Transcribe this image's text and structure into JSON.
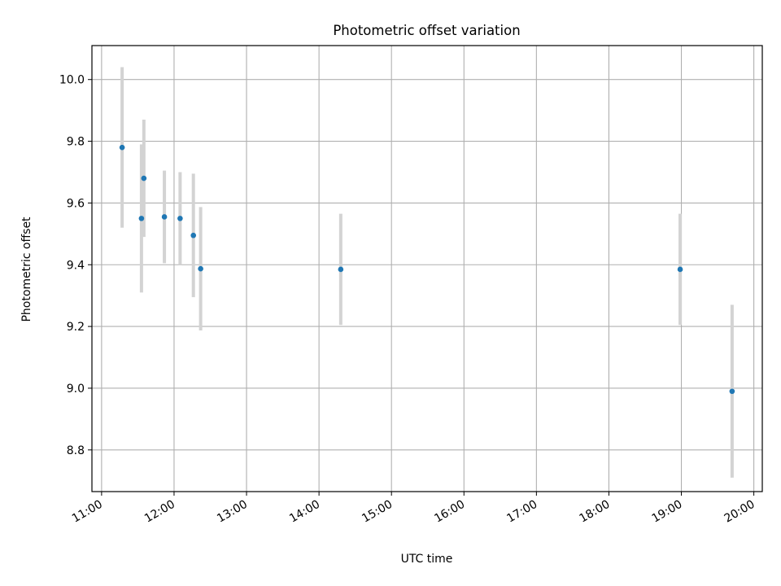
{
  "chart_data": {
    "type": "scatter",
    "title": "Photometric offset variation",
    "xlabel": "UTC time",
    "ylabel": "Photometric offset",
    "x_axis_type": "time",
    "xlim": [
      "10:52",
      "20:07"
    ],
    "ylim": [
      8.665,
      10.11
    ],
    "grid": true,
    "xticks": [
      "11:00",
      "12:00",
      "13:00",
      "14:00",
      "15:00",
      "16:00",
      "17:00",
      "18:00",
      "19:00",
      "20:00"
    ],
    "yticks": [
      "8.8",
      "9.0",
      "9.2",
      "9.4",
      "9.6",
      "9.8",
      "10.0"
    ],
    "series": [
      {
        "marker_color": "#1f77b4",
        "errorbar_color": "#d3d3d3",
        "points": [
          {
            "x": "11:17",
            "y": 9.78,
            "err": 0.26
          },
          {
            "x": "11:33",
            "y": 9.55,
            "err": 0.24
          },
          {
            "x": "11:35",
            "y": 9.68,
            "err": 0.19
          },
          {
            "x": "11:52",
            "y": 9.555,
            "err": 0.15
          },
          {
            "x": "12:05",
            "y": 9.55,
            "err": 0.15
          },
          {
            "x": "12:16",
            "y": 9.495,
            "err": 0.2
          },
          {
            "x": "12:22",
            "y": 9.387,
            "err": 0.2
          },
          {
            "x": "14:18",
            "y": 9.385,
            "err": 0.18
          },
          {
            "x": "18:59",
            "y": 9.385,
            "err": 0.18
          },
          {
            "x": "19:42",
            "y": 8.99,
            "err": 0.28
          }
        ]
      }
    ]
  }
}
